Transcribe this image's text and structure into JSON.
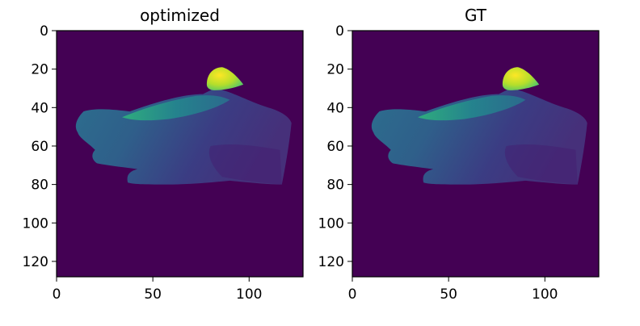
{
  "chart_data": [
    {
      "type": "heatmap",
      "title": "optimized",
      "xlabel": "",
      "ylabel": "",
      "image_size": [
        128,
        128
      ],
      "xlim": [
        0,
        128
      ],
      "ylim": [
        128,
        0
      ],
      "xticks": [
        0,
        50,
        100
      ],
      "yticks": [
        0,
        20,
        40,
        60,
        80,
        100,
        120
      ],
      "colormap": "viridis",
      "background_color": "#440154",
      "content": "depth map of a hand, values increase toward the wrist (bright near the thumb tip)"
    },
    {
      "type": "heatmap",
      "title": "GT",
      "xlabel": "",
      "ylabel": "",
      "image_size": [
        128,
        128
      ],
      "xlim": [
        0,
        128
      ],
      "ylim": [
        128,
        0
      ],
      "xticks": [
        0,
        50,
        100
      ],
      "yticks": [
        0,
        20,
        40,
        60,
        80,
        100,
        120
      ],
      "colormap": "viridis",
      "background_color": "#440154",
      "content": "depth map of a hand, values increase toward the wrist (bright near the thumb tip)"
    }
  ]
}
